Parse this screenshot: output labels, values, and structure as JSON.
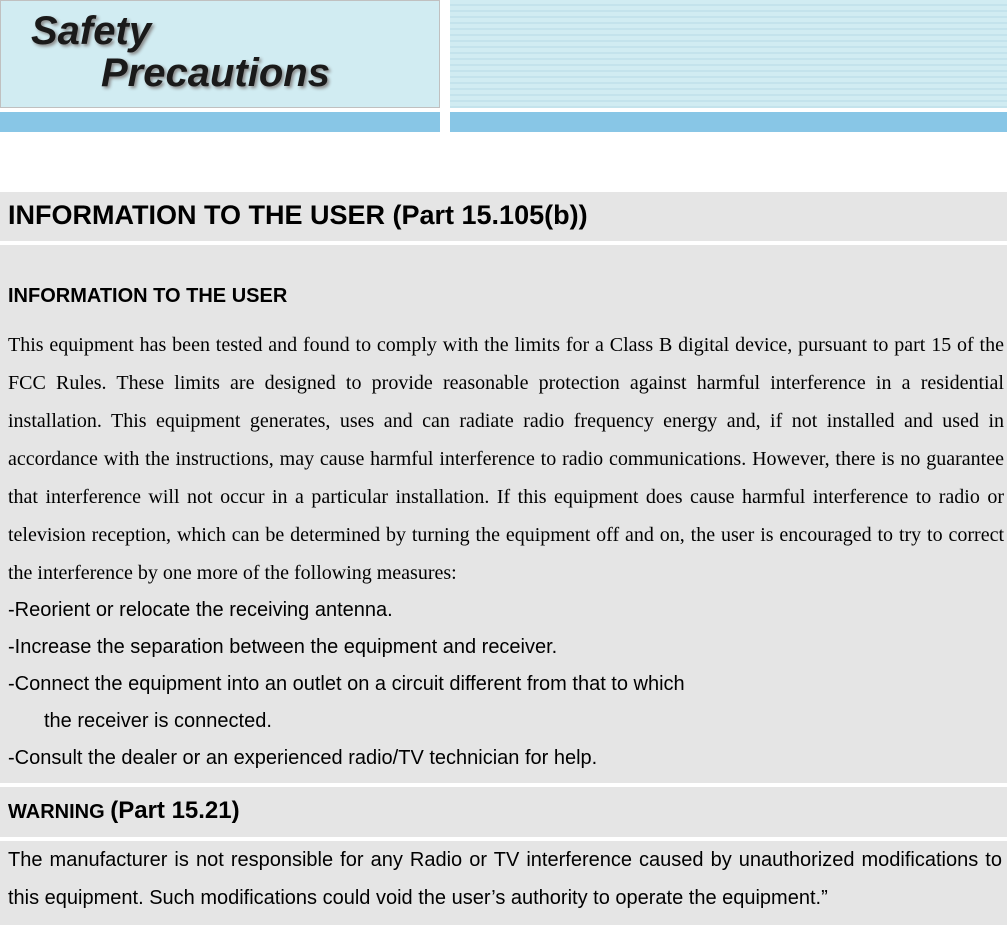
{
  "colors": {
    "page_bg": "#ffffff",
    "panel_bg": "#e5e5e5",
    "banner_bg": "#d1ecf2",
    "stripe_bg": "#c4e3ec",
    "bar_bg": "#88c6e6",
    "text_color": "#000000",
    "shadow_color": "#888888"
  },
  "typography": {
    "heading_font": "Arial",
    "body_serif_font": "Times New Roman",
    "banner_font": "Comic Sans / Arial Black italic",
    "section_title_size_pt": 20,
    "subtitle_size_pt": 15,
    "body_size_pt": 15,
    "banner_size_pt": 30
  },
  "banner": {
    "line1": "Safety",
    "line2": "Precautions"
  },
  "section1": {
    "title": "INFORMATION TO THE USER (Part 15.105(b))",
    "subtitle": "INFORMATION TO THE USER",
    "body": "This equipment has been tested and found to comply with the limits for a Class B digital device, pursuant to part 15 of the FCC Rules. These limits are designed to provide reasonable protection against harmful interference in a residential installation. This equipment generates, uses and can radiate radio frequency energy and, if not installed and used in accordance with the instructions, may cause harmful interference to radio communications. However, there is no guarantee that interference will not occur in a particular installation. If this equipment does cause harmful interference to radio or television reception, which can be determined by turning the equipment off and on, the user is encouraged to try to correct the interference by one more of the following measures:",
    "list": [
      "-Reorient or relocate the receiving antenna.",
      "-Increase the separation between the equipment and receiver.",
      "-Connect the equipment into an outlet on a circuit different from that to which",
      "the receiver is connected.",
      "-Consult the dealer or an experienced radio/TV technician for help."
    ]
  },
  "section2": {
    "title_small": "WARNING ",
    "title_large": "(Part 15.21)",
    "body": "The manufacturer is not responsible for any Radio or TV interference caused by unauthorized modifications to this equipment. Such modifications could void the user’s authority to operate the equipment.”"
  }
}
